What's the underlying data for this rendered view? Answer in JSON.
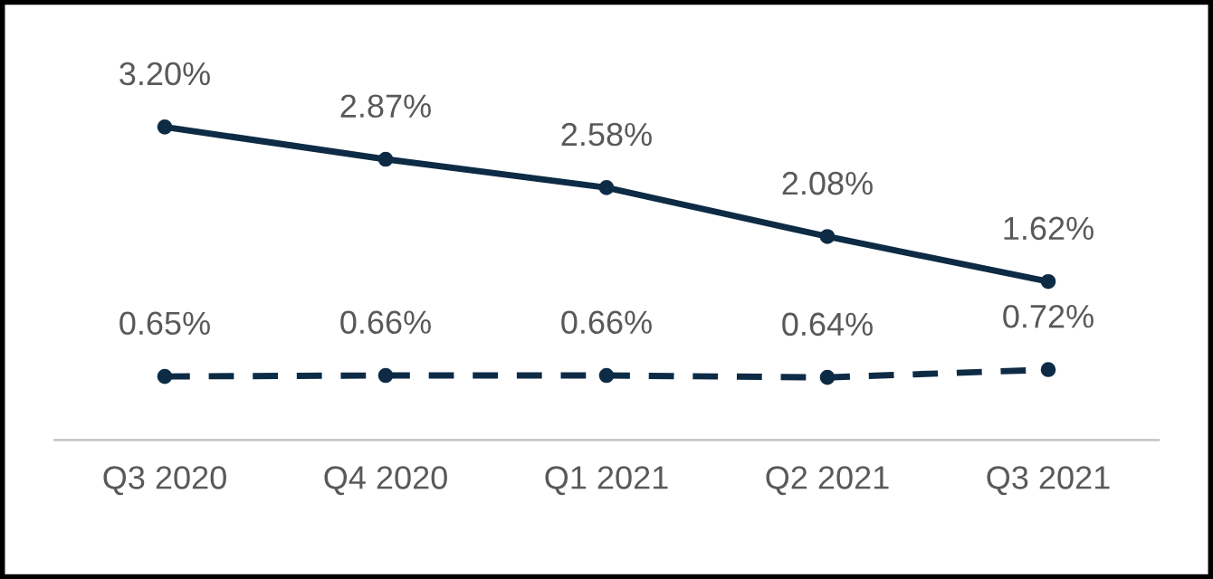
{
  "chart_data": {
    "type": "line",
    "categories": [
      "Q3 2020",
      "Q4 2020",
      "Q1 2021",
      "Q2 2021",
      "Q3 2021"
    ],
    "series": [
      {
        "color": "#0d2b45",
        "line_style": "solid",
        "values": [
          3.2,
          2.87,
          2.58,
          2.08,
          1.62
        ],
        "value_labels": [
          "3.20%",
          "2.87%",
          "2.58%",
          "2.08%",
          "1.62%"
        ]
      },
      {
        "color": "#0d2b45",
        "line_style": "dashed",
        "values": [
          0.65,
          0.66,
          0.66,
          0.64,
          0.72
        ],
        "value_labels": [
          "0.65%",
          "0.66%",
          "0.66%",
          "0.64%",
          "0.72%"
        ]
      }
    ],
    "marker": "circle",
    "grid": false,
    "legend": false,
    "tick_labels": "x"
  }
}
